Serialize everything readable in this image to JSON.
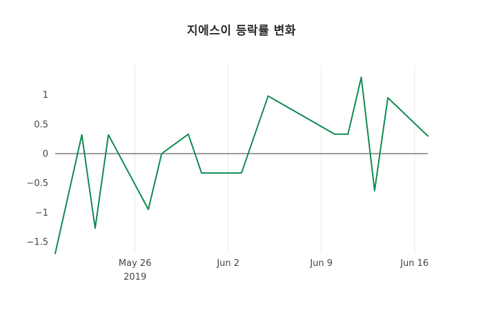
{
  "chart_data": {
    "type": "line",
    "title": "지에스이 등락률 변화",
    "series": [
      {
        "name": "등락률",
        "color": "#0f8a4f",
        "x": [
          0,
          2,
          3,
          4,
          7,
          8,
          10,
          11,
          14,
          16,
          21,
          22,
          23,
          24,
          25,
          28
        ],
        "dates": [
          "May 20",
          "May 22",
          "May 23",
          "May 24",
          "May 27",
          "May 28",
          "May 30",
          "May 31",
          "Jun 3",
          "Jun 5",
          "Jun 10",
          "Jun 11",
          "Jun 12",
          "Jun 13",
          "Jun 14",
          "Jun 17"
        ],
        "values": [
          -1.7,
          0.32,
          -1.27,
          0.32,
          -0.95,
          0.0,
          0.33,
          -0.33,
          -0.33,
          0.98,
          0.33,
          0.33,
          1.3,
          -0.63,
          0.95,
          0.3
        ]
      }
    ],
    "x_range": [
      0,
      28
    ],
    "y_range": [
      -1.7,
      1.5
    ],
    "x_ticks": [
      {
        "pos": 6,
        "label": "May 26",
        "sublabel": "2019"
      },
      {
        "pos": 13,
        "label": "Jun 2",
        "sublabel": ""
      },
      {
        "pos": 20,
        "label": "Jun 9",
        "sublabel": ""
      },
      {
        "pos": 27,
        "label": "Jun 16",
        "sublabel": ""
      }
    ],
    "y_ticks": [
      {
        "value": 1,
        "label": "1"
      },
      {
        "value": 0.5,
        "label": "0.5"
      },
      {
        "value": 0,
        "label": "0"
      },
      {
        "value": -0.5,
        "label": "−0.5"
      },
      {
        "value": -1,
        "label": "−1"
      },
      {
        "value": -1.5,
        "label": "−1.5"
      }
    ],
    "grid": "vertical-only",
    "zero_line": true,
    "legend": "none",
    "colors": {
      "line": "#0f8a4f",
      "grid": "#e6e6e6",
      "zero_line": "#3a3a3a",
      "tick_text": "#444444",
      "title_text": "#2a2a2a",
      "background": "#ffffff"
    }
  }
}
